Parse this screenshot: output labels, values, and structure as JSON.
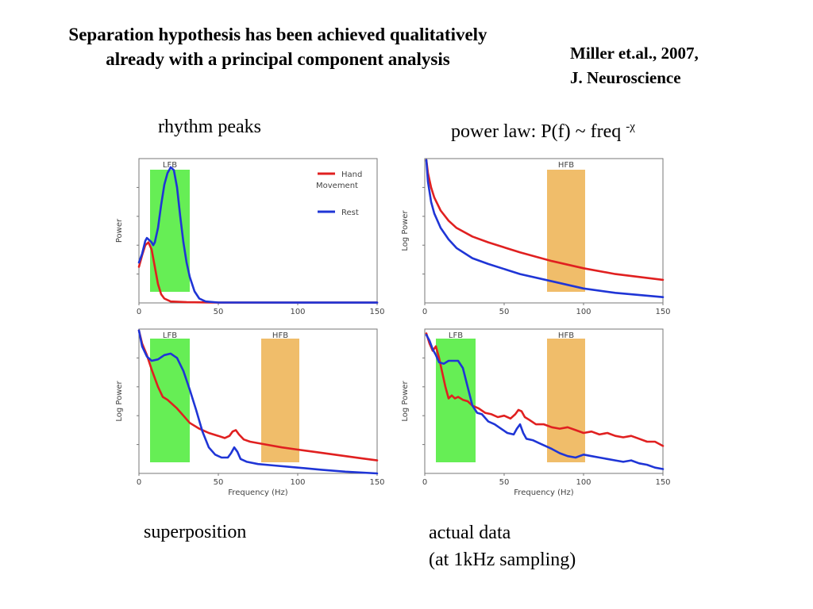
{
  "slide": {
    "title": "Separation hypothesis has been achieved qualitatively already with a principal component analysis",
    "reference_line1": "Miller et.al., 2007,",
    "reference_line2": "J. Neuroscience",
    "cap_top_left": "rhythm peaks",
    "cap_top_right_prefix": "power law: P(f) ~ freq ",
    "cap_top_right_exp": "-χ",
    "cap_bottom_left": "superposition",
    "cap_bottom_right_line1": "actual data",
    "cap_bottom_right_line2": "(at 1kHz sampling)"
  },
  "colors": {
    "hand_movement": "#e02020",
    "rest": "#1f35d6",
    "lfb_band": "#66ee55",
    "hfb_band": "#f0bd6a"
  },
  "chart_data": [
    {
      "type": "line",
      "ylabel": "Power",
      "xlabel": "",
      "xlim": [
        0,
        150
      ],
      "xticks": [
        "0",
        "50",
        "100",
        "150"
      ],
      "ylim": [
        0,
        1
      ],
      "legend": "top-right",
      "legend_entries": [
        {
          "name": "Hand\nMovement",
          "line1": "Hand",
          "line2": "Movement",
          "color": "#e02020"
        },
        {
          "name": "Rest",
          "line1": "Rest",
          "line2": "",
          "color": "#1f35d6"
        }
      ],
      "bands": [
        {
          "label": "LFB",
          "from": 7,
          "to": 32,
          "color": "#66ee55"
        }
      ],
      "series": [
        {
          "name": "Hand Movement",
          "color": "#e02020",
          "x": [
            0,
            2,
            4,
            6,
            8,
            10,
            12,
            14,
            16,
            20,
            30,
            50,
            150
          ],
          "y": [
            0.25,
            0.33,
            0.4,
            0.42,
            0.37,
            0.25,
            0.13,
            0.06,
            0.03,
            0.01,
            0.005,
            0.002,
            0.002
          ]
        },
        {
          "name": "Rest",
          "color": "#1f35d6",
          "x": [
            0,
            2,
            4,
            5,
            6,
            8,
            9,
            10,
            12,
            14,
            16,
            18,
            20,
            22,
            24,
            26,
            28,
            30,
            32,
            35,
            38,
            42,
            50,
            150
          ],
          "y": [
            0.28,
            0.34,
            0.43,
            0.45,
            0.44,
            0.42,
            0.4,
            0.42,
            0.52,
            0.68,
            0.82,
            0.9,
            0.94,
            0.92,
            0.8,
            0.6,
            0.42,
            0.28,
            0.18,
            0.08,
            0.03,
            0.01,
            0.003,
            0.002
          ]
        }
      ]
    },
    {
      "type": "line",
      "ylabel": "Log Power",
      "xlabel": "",
      "xlim": [
        0,
        150
      ],
      "xticks": [
        "0",
        "50",
        "100",
        "150"
      ],
      "ylim": [
        0,
        1
      ],
      "bands": [
        {
          "label": "HFB",
          "from": 77,
          "to": 101,
          "color": "#f0bd6a"
        }
      ],
      "series": [
        {
          "name": "Hand Movement",
          "color": "#e02020",
          "x": [
            1,
            2,
            4,
            6,
            10,
            15,
            20,
            30,
            40,
            60,
            80,
            100,
            120,
            150
          ],
          "y": [
            0.99,
            0.9,
            0.8,
            0.73,
            0.64,
            0.57,
            0.52,
            0.46,
            0.42,
            0.35,
            0.29,
            0.24,
            0.2,
            0.16
          ]
        },
        {
          "name": "Rest",
          "color": "#1f35d6",
          "x": [
            1,
            2,
            4,
            6,
            10,
            15,
            20,
            30,
            40,
            60,
            80,
            100,
            120,
            150
          ],
          "y": [
            0.99,
            0.84,
            0.7,
            0.62,
            0.52,
            0.44,
            0.38,
            0.31,
            0.27,
            0.2,
            0.15,
            0.1,
            0.07,
            0.04
          ]
        }
      ]
    },
    {
      "type": "line",
      "ylabel": "Log Power",
      "xlabel": "Frequency (Hz)",
      "xlim": [
        0,
        150
      ],
      "xticks": [
        "0",
        "50",
        "100",
        "150"
      ],
      "ylim": [
        0,
        1
      ],
      "bands": [
        {
          "label": "LFB",
          "from": 7,
          "to": 32,
          "color": "#66ee55"
        },
        {
          "label": "HFB",
          "from": 77,
          "to": 101,
          "color": "#f0bd6a"
        }
      ],
      "series": [
        {
          "name": "Hand Movement",
          "color": "#e02020",
          "x": [
            0,
            2,
            5,
            8,
            12,
            15,
            18,
            20,
            24,
            28,
            32,
            38,
            44,
            50,
            54,
            57,
            59,
            61,
            63,
            66,
            70,
            80,
            90,
            100,
            110,
            120,
            130,
            140,
            150
          ],
          "y": [
            0.99,
            0.9,
            0.82,
            0.72,
            0.6,
            0.53,
            0.51,
            0.49,
            0.45,
            0.4,
            0.35,
            0.31,
            0.28,
            0.26,
            0.245,
            0.26,
            0.29,
            0.3,
            0.27,
            0.235,
            0.22,
            0.2,
            0.18,
            0.165,
            0.15,
            0.135,
            0.12,
            0.105,
            0.09
          ]
        },
        {
          "name": "Rest",
          "color": "#1f35d6",
          "x": [
            0,
            2,
            5,
            8,
            12,
            16,
            20,
            24,
            28,
            32,
            36,
            40,
            44,
            48,
            52,
            56,
            58,
            60,
            62,
            64,
            68,
            75,
            85,
            100,
            115,
            130,
            150
          ],
          "y": [
            0.99,
            0.88,
            0.81,
            0.78,
            0.79,
            0.82,
            0.83,
            0.8,
            0.71,
            0.58,
            0.44,
            0.29,
            0.18,
            0.13,
            0.11,
            0.11,
            0.14,
            0.18,
            0.15,
            0.1,
            0.08,
            0.065,
            0.055,
            0.04,
            0.025,
            0.012,
            0.0
          ]
        }
      ]
    },
    {
      "type": "line",
      "ylabel": "Log Power",
      "xlabel": "Frequency (Hz)",
      "xlim": [
        0,
        150
      ],
      "xticks": [
        "0",
        "50",
        "100",
        "150"
      ],
      "ylim": [
        0,
        1
      ],
      "bands": [
        {
          "label": "LFB",
          "from": 7,
          "to": 32,
          "color": "#66ee55"
        },
        {
          "label": "HFB",
          "from": 77,
          "to": 101,
          "color": "#f0bd6a"
        }
      ],
      "series": [
        {
          "name": "Hand Movement",
          "color": "#e02020",
          "x": [
            1,
            3,
            5,
            7,
            9,
            11,
            13,
            15,
            17,
            19,
            21,
            24,
            27,
            30,
            34,
            38,
            42,
            46,
            50,
            54,
            57,
            59,
            61,
            63,
            66,
            70,
            75,
            80,
            85,
            90,
            95,
            100,
            105,
            110,
            115,
            120,
            125,
            130,
            135,
            140,
            145,
            150
          ],
          "y": [
            0.97,
            0.9,
            0.85,
            0.88,
            0.8,
            0.7,
            0.6,
            0.52,
            0.54,
            0.52,
            0.53,
            0.51,
            0.5,
            0.47,
            0.45,
            0.42,
            0.41,
            0.39,
            0.4,
            0.38,
            0.41,
            0.44,
            0.43,
            0.39,
            0.37,
            0.34,
            0.34,
            0.32,
            0.31,
            0.32,
            0.3,
            0.28,
            0.29,
            0.27,
            0.28,
            0.26,
            0.25,
            0.26,
            0.24,
            0.22,
            0.22,
            0.19
          ]
        },
        {
          "name": "Rest",
          "color": "#1f35d6",
          "x": [
            1,
            3,
            5,
            7,
            9,
            12,
            15,
            18,
            21,
            24,
            27,
            30,
            33,
            36,
            40,
            44,
            48,
            52,
            56,
            58,
            60,
            62,
            64,
            68,
            72,
            76,
            80,
            85,
            90,
            95,
            100,
            105,
            110,
            115,
            120,
            125,
            130,
            135,
            140,
            145,
            150
          ],
          "y": [
            0.96,
            0.92,
            0.86,
            0.82,
            0.77,
            0.76,
            0.78,
            0.78,
            0.78,
            0.73,
            0.6,
            0.47,
            0.42,
            0.41,
            0.36,
            0.34,
            0.31,
            0.28,
            0.27,
            0.31,
            0.34,
            0.28,
            0.24,
            0.23,
            0.21,
            0.19,
            0.17,
            0.14,
            0.12,
            0.11,
            0.13,
            0.12,
            0.11,
            0.1,
            0.09,
            0.08,
            0.09,
            0.07,
            0.06,
            0.04,
            0.03
          ]
        }
      ]
    }
  ]
}
